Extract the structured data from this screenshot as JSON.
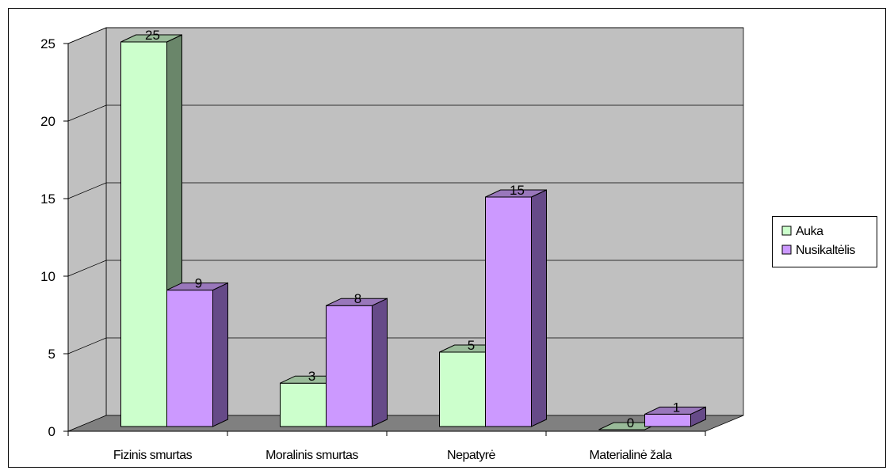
{
  "chart_data": {
    "type": "bar",
    "title": "",
    "xlabel": "",
    "ylabel": "",
    "categories": [
      "Fizinis smurtas",
      "Moralinis smurtas",
      "Nepatyrė",
      "Materialinė žala"
    ],
    "series": [
      {
        "name": "Auka",
        "values": [
          25,
          3,
          5,
          0
        ],
        "color": "#ccffcc",
        "side_color": "#6a866a",
        "top_color": "#99bb99"
      },
      {
        "name": "Nusikaltėlis",
        "values": [
          9,
          8,
          15,
          1
        ],
        "color": "#cc99ff",
        "side_color": "#664a88",
        "top_color": "#9977bb"
      }
    ],
    "ylim": [
      0,
      25
    ],
    "yticks": [
      0,
      5,
      10,
      15,
      20,
      25
    ],
    "grid": true,
    "legend": "right",
    "wall_color": "#c0c0c0",
    "floor_color": "#808080"
  }
}
